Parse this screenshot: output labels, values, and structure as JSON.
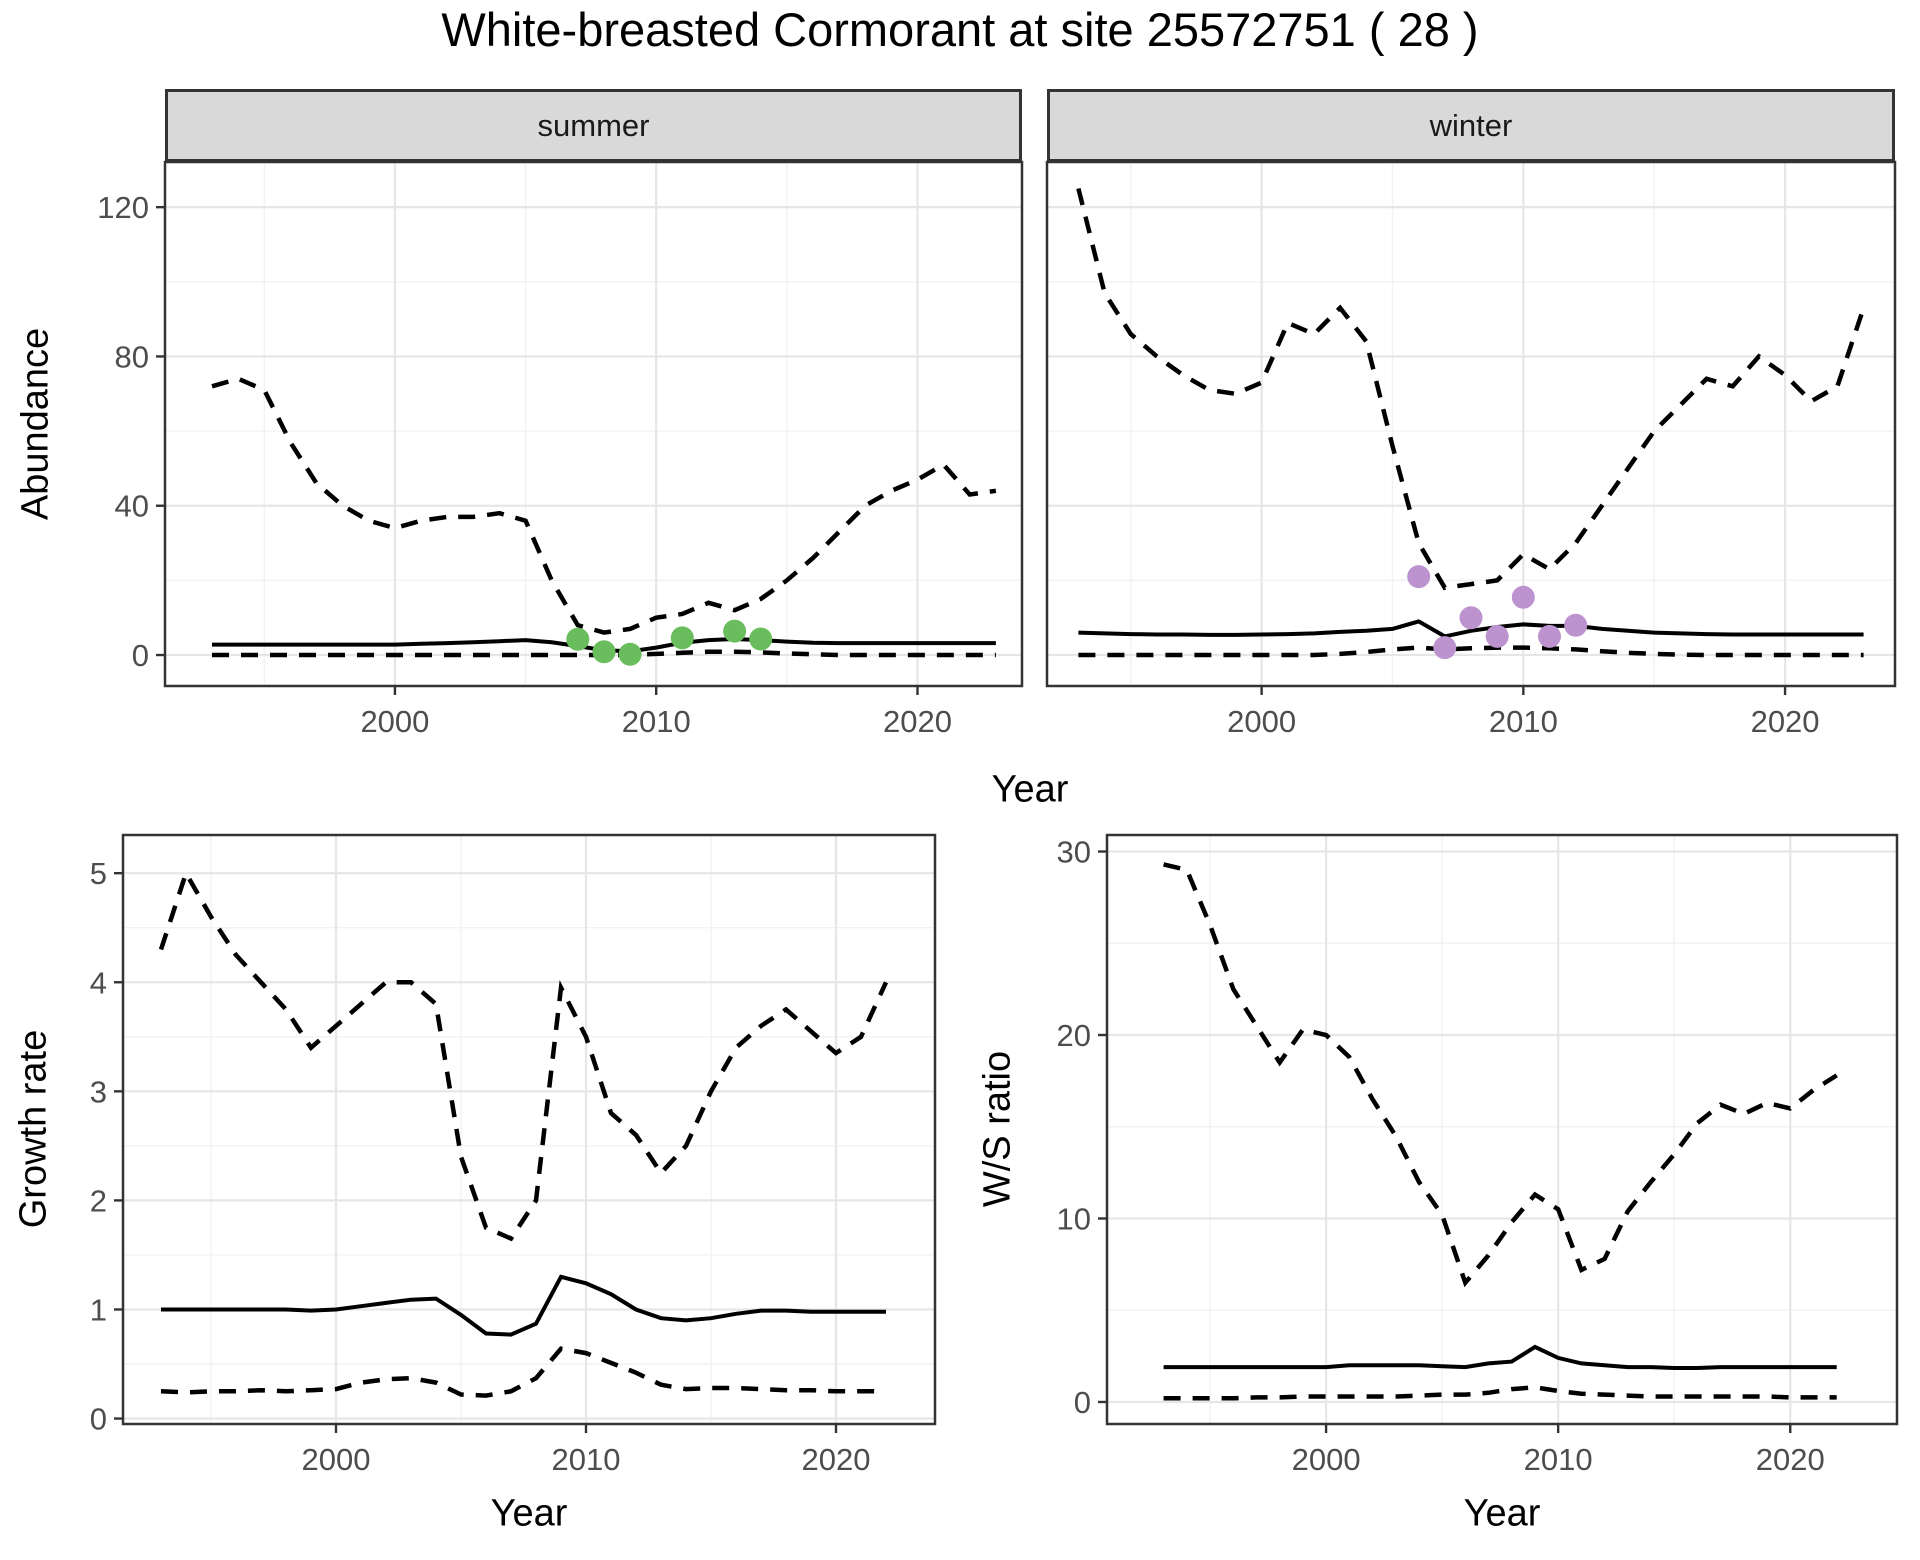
{
  "title": "White-breasted Cormorant at site 25572751 ( 28 )",
  "facets": [
    {
      "label": "summer"
    },
    {
      "label": "winter"
    }
  ],
  "labels": {
    "x": "Year",
    "abundance": "Abundance",
    "growth": "Growth rate",
    "ws": "W/S ratio"
  },
  "colors": {
    "summer_points": "#6abd5c",
    "winter_points": "#bc93ce",
    "line": "#000000",
    "strip_bg": "#d9d9d9",
    "panel_border": "#333333",
    "grid_major": "#e6e6e6",
    "grid_minor": "#f2f2f2",
    "tick_text": "#4d4d4d"
  },
  "chart_data": [
    {
      "id": "abundance-summer",
      "type": "line",
      "panel": "summer",
      "title": "summer",
      "xlabel": "Year",
      "ylabel": "Abundance",
      "xlim": [
        1991.2,
        2024.0
      ],
      "ylim": [
        -8.3,
        132.1
      ],
      "xticks": [
        2000,
        2010,
        2020
      ],
      "xtick_labels": [
        "2000",
        "2010",
        "2020"
      ],
      "xticks_minor": [
        1995,
        2005,
        2015
      ],
      "yticks": [
        0,
        40,
        80,
        120
      ],
      "ytick_labels": [
        "0",
        "40",
        "80",
        "120"
      ],
      "yticks_minor": [
        20,
        60,
        100
      ],
      "x": [
        1993,
        1994,
        1995,
        1996,
        1997,
        1998,
        1999,
        2000,
        2001,
        2002,
        2003,
        2004,
        2005,
        2006,
        2007,
        2008,
        2009,
        2010,
        2011,
        2012,
        2013,
        2014,
        2015,
        2016,
        2017,
        2018,
        2019,
        2020,
        2021,
        2022,
        2023
      ],
      "series": [
        {
          "name": "upper-95ci",
          "style": "dashed",
          "values": [
            72,
            74,
            71,
            57,
            46,
            40,
            36,
            34,
            36,
            37,
            37,
            38,
            36,
            20,
            8,
            6,
            7,
            10,
            11,
            14,
            12,
            15,
            20,
            26,
            33,
            40,
            44,
            47,
            51,
            43,
            44
          ]
        },
        {
          "name": "median",
          "style": "solid",
          "values": [
            2.8,
            2.8,
            2.8,
            2.8,
            2.8,
            2.8,
            2.8,
            2.8,
            3.0,
            3.2,
            3.4,
            3.7,
            4.0,
            3.4,
            2.4,
            1.3,
            1.0,
            2.0,
            3.3,
            4.0,
            4.3,
            4.0,
            3.6,
            3.3,
            3.2,
            3.2,
            3.2,
            3.2,
            3.2,
            3.2,
            3.2
          ]
        },
        {
          "name": "lower-5ci",
          "style": "dashed",
          "values": [
            0,
            0,
            0,
            0,
            0,
            0,
            0,
            0,
            0,
            0,
            0,
            0,
            0,
            0,
            0,
            0,
            0,
            0.3,
            0.6,
            0.9,
            0.9,
            0.7,
            0.4,
            0.2,
            0,
            0,
            0,
            0,
            0,
            0,
            0
          ]
        }
      ],
      "points": {
        "name": "observed-counts-summer",
        "color": "#6abd5c",
        "data": [
          [
            2007,
            4.2
          ],
          [
            2008,
            0.9
          ],
          [
            2009,
            0.2
          ],
          [
            2011,
            4.6
          ],
          [
            2013,
            6.4
          ],
          [
            2014,
            4.3
          ]
        ]
      }
    },
    {
      "id": "abundance-winter",
      "type": "line",
      "panel": "winter",
      "title": "winter",
      "xlabel": "Year",
      "ylabel": "Abundance",
      "xlim": [
        1991.8,
        2024.2
      ],
      "ylim": [
        -8.3,
        132.1
      ],
      "xticks": [
        2000,
        2010,
        2020
      ],
      "xtick_labels": [
        "2000",
        "2010",
        "2020"
      ],
      "xticks_minor": [
        1995,
        2005,
        2015
      ],
      "yticks": [
        0,
        40,
        80,
        120
      ],
      "ytick_labels": [],
      "yticks_minor": [
        20,
        60,
        100
      ],
      "x": [
        1993,
        1994,
        1995,
        1996,
        1997,
        1998,
        1999,
        2000,
        2001,
        2002,
        2003,
        2004,
        2005,
        2006,
        2007,
        2008,
        2009,
        2010,
        2011,
        2012,
        2013,
        2014,
        2015,
        2016,
        2017,
        2018,
        2019,
        2020,
        2021,
        2022,
        2023
      ],
      "series": [
        {
          "name": "upper-95ci",
          "style": "dashed",
          "values": [
            125,
            97,
            86,
            80,
            75,
            71,
            70,
            73,
            89,
            86,
            93,
            84,
            56,
            30,
            18,
            19,
            20,
            27,
            23,
            30,
            40,
            50,
            60,
            67,
            74,
            72,
            80,
            75,
            68,
            72,
            93
          ]
        },
        {
          "name": "median",
          "style": "solid",
          "values": [
            6,
            5.8,
            5.6,
            5.5,
            5.5,
            5.4,
            5.4,
            5.5,
            5.6,
            5.8,
            6.2,
            6.5,
            7,
            9,
            5,
            6.5,
            7.5,
            8.2,
            7.8,
            7.8,
            7,
            6.5,
            6,
            5.8,
            5.6,
            5.5,
            5.5,
            5.5,
            5.5,
            5.5,
            5.5
          ]
        },
        {
          "name": "lower-5ci",
          "style": "dashed",
          "values": [
            0,
            0,
            0,
            0,
            0,
            0,
            0,
            0,
            0,
            0,
            0.3,
            0.8,
            1.5,
            2,
            1.5,
            1.8,
            2,
            2,
            1.8,
            1.5,
            1,
            0.6,
            0.3,
            0.1,
            0,
            0,
            0,
            0,
            0,
            0,
            0
          ]
        }
      ],
      "points": {
        "name": "observed-counts-winter",
        "color": "#bc93ce",
        "data": [
          [
            2006,
            21
          ],
          [
            2007,
            2
          ],
          [
            2008,
            10
          ],
          [
            2009,
            5
          ],
          [
            2010,
            15.5
          ],
          [
            2011,
            5
          ],
          [
            2012,
            8
          ]
        ]
      }
    },
    {
      "id": "growth-rate",
      "type": "line",
      "panel": "growth",
      "title": "",
      "xlabel": "Year",
      "ylabel": "Growth rate",
      "xlim": [
        1991.48,
        2023.96
      ],
      "ylim": [
        -0.05,
        5.35
      ],
      "xticks": [
        2000,
        2010,
        2020
      ],
      "xtick_labels": [
        "2000",
        "2010",
        "2020"
      ],
      "xticks_minor": [
        1995,
        2005,
        2015
      ],
      "yticks": [
        0,
        1,
        2,
        3,
        4,
        5
      ],
      "ytick_labels": [
        "0",
        "1",
        "2",
        "3",
        "4",
        "5"
      ],
      "yticks_minor": [
        0.5,
        1.5,
        2.5,
        3.5,
        4.5
      ],
      "x": [
        1993,
        1994,
        1995,
        1996,
        1997,
        1998,
        1999,
        2000,
        2001,
        2002,
        2003,
        2004,
        2005,
        2006,
        2007,
        2008,
        2009,
        2010,
        2011,
        2012,
        2013,
        2014,
        2015,
        2016,
        2017,
        2018,
        2019,
        2020,
        2021,
        2022
      ],
      "series": [
        {
          "name": "upper-95ci",
          "style": "dashed",
          "values": [
            4.3,
            5.0,
            4.6,
            4.25,
            4.0,
            3.75,
            3.4,
            3.6,
            3.8,
            4.0,
            4.0,
            3.8,
            2.4,
            1.75,
            1.65,
            2.0,
            3.95,
            3.5,
            2.8,
            2.6,
            2.25,
            2.5,
            3.0,
            3.4,
            3.6,
            3.75,
            3.55,
            3.35,
            3.5,
            4.0
          ]
        },
        {
          "name": "median",
          "style": "solid",
          "values": [
            1.0,
            1.0,
            1.0,
            1.0,
            1.0,
            1.0,
            0.99,
            1.0,
            1.03,
            1.06,
            1.09,
            1.1,
            0.95,
            0.78,
            0.77,
            0.87,
            1.3,
            1.24,
            1.14,
            1.0,
            0.92,
            0.9,
            0.92,
            0.96,
            0.99,
            0.99,
            0.98,
            0.98,
            0.98,
            0.98
          ]
        },
        {
          "name": "lower-5ci",
          "style": "dashed",
          "values": [
            0.25,
            0.24,
            0.25,
            0.25,
            0.26,
            0.25,
            0.26,
            0.27,
            0.33,
            0.36,
            0.37,
            0.33,
            0.22,
            0.21,
            0.25,
            0.37,
            0.64,
            0.6,
            0.51,
            0.42,
            0.31,
            0.27,
            0.28,
            0.28,
            0.27,
            0.26,
            0.26,
            0.25,
            0.25,
            0.25
          ]
        }
      ],
      "points": null
    },
    {
      "id": "ws-ratio",
      "type": "line",
      "panel": "ws",
      "title": "",
      "xlabel": "Year",
      "ylabel": "W/S ratio",
      "xlim": [
        1990.56,
        2024.6
      ],
      "ylim": [
        -1.2,
        30.9
      ],
      "xticks": [
        2000,
        2010,
        2020
      ],
      "xtick_labels": [
        "2000",
        "2010",
        "2020"
      ],
      "xticks_minor": [
        1995,
        2005,
        2015
      ],
      "yticks": [
        0,
        10,
        20,
        30
      ],
      "ytick_labels": [
        "0",
        "10",
        "20",
        "30"
      ],
      "yticks_minor": [
        5,
        15,
        25
      ],
      "x": [
        1993,
        1994,
        1995,
        1996,
        1997,
        1998,
        1999,
        2000,
        2001,
        2002,
        2003,
        2004,
        2005,
        2006,
        2007,
        2008,
        2009,
        2010,
        2011,
        2012,
        2013,
        2014,
        2015,
        2016,
        2017,
        2018,
        2019,
        2020,
        2021,
        2022
      ],
      "series": [
        {
          "name": "upper-95ci",
          "style": "dashed",
          "values": [
            29.3,
            29.0,
            26.0,
            22.5,
            20.5,
            18.5,
            20.3,
            20.0,
            18.8,
            16.5,
            14.5,
            12.0,
            10.2,
            6.5,
            8.0,
            9.8,
            11.3,
            10.5,
            7.2,
            7.8,
            10.4,
            12.0,
            13.5,
            15.2,
            16.2,
            15.7,
            16.3,
            16.0,
            17.0,
            17.8
          ]
        },
        {
          "name": "median",
          "style": "solid",
          "values": [
            1.9,
            1.9,
            1.9,
            1.9,
            1.9,
            1.9,
            1.9,
            1.9,
            2.0,
            2.0,
            2.0,
            2.0,
            1.95,
            1.9,
            2.1,
            2.2,
            3.0,
            2.4,
            2.1,
            2.0,
            1.9,
            1.9,
            1.85,
            1.85,
            1.9,
            1.9,
            1.9,
            1.9,
            1.9,
            1.9
          ]
        },
        {
          "name": "lower-5ci",
          "style": "dashed",
          "values": [
            0.2,
            0.2,
            0.2,
            0.2,
            0.25,
            0.25,
            0.3,
            0.3,
            0.3,
            0.3,
            0.3,
            0.35,
            0.4,
            0.4,
            0.5,
            0.7,
            0.8,
            0.6,
            0.45,
            0.4,
            0.35,
            0.3,
            0.3,
            0.3,
            0.3,
            0.3,
            0.3,
            0.25,
            0.25,
            0.25
          ]
        }
      ],
      "points": null
    }
  ]
}
